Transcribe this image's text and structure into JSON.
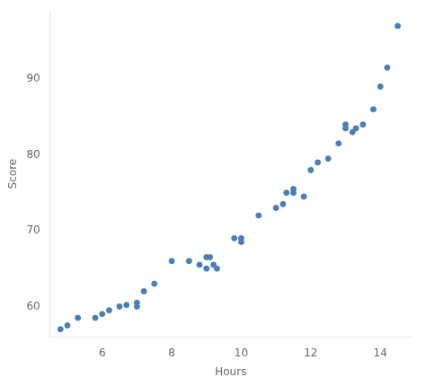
{
  "chart_data": {
    "type": "scatter",
    "x": [
      4.8,
      5.0,
      5.3,
      5.8,
      6.0,
      6.2,
      6.5,
      6.7,
      7.0,
      7.0,
      7.2,
      7.5,
      8.0,
      8.5,
      8.8,
      9.0,
      9.0,
      9.1,
      9.2,
      9.3,
      9.8,
      10.0,
      10.0,
      10.5,
      11.0,
      11.2,
      11.3,
      11.5,
      11.5,
      11.8,
      12.0,
      12.2,
      12.5,
      12.8,
      13.0,
      13.0,
      13.2,
      13.3,
      13.5,
      13.8,
      14.0,
      14.2,
      14.5
    ],
    "values": [
      57.0,
      57.5,
      58.5,
      58.5,
      59.0,
      59.5,
      60.0,
      60.2,
      60.0,
      60.5,
      62.0,
      63.0,
      66.0,
      66.0,
      65.5,
      66.5,
      65.0,
      66.5,
      65.5,
      65.0,
      69.0,
      69.0,
      68.5,
      72.0,
      73.0,
      73.5,
      75.0,
      75.5,
      75.0,
      74.5,
      78.0,
      79.0,
      79.5,
      81.5,
      83.5,
      84.0,
      83.0,
      83.5,
      84.0,
      86.0,
      89.0,
      91.5,
      97.0
    ],
    "color": "#4a7fb5",
    "xlabel": "Hours",
    "ylabel": "Score",
    "xlim": [
      4.5,
      14.9
    ],
    "ylim": [
      56,
      99
    ],
    "xticks": [
      6,
      8,
      10,
      12,
      14
    ],
    "yticks": [
      60,
      70,
      80,
      90
    ],
    "grid": false
  }
}
